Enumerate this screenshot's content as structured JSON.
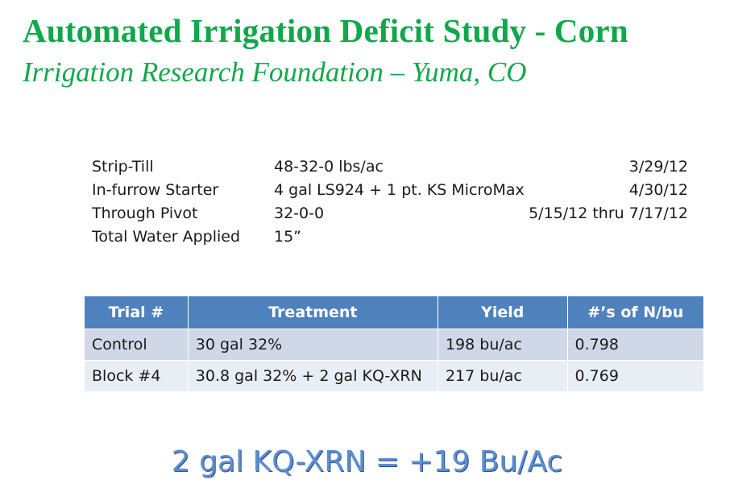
{
  "slide": {
    "title": "Automated Irrigation Deficit Study - Corn",
    "subtitle": "Irrigation Research Foundation – Yuma, CO"
  },
  "applications": [
    {
      "label": "Strip-Till",
      "value": "48-32-0 lbs/ac",
      "date": "3/29/12"
    },
    {
      "label": "In-furrow Starter",
      "value": "4 gal LS924 + 1 pt. KS MicroMax",
      "date": "4/30/12"
    },
    {
      "label": "Through Pivot",
      "value": "32-0-0",
      "date": "5/15/12 thru 7/17/12"
    },
    {
      "label": "Total Water Applied",
      "value": "15”",
      "date": ""
    }
  ],
  "results_table": {
    "headers": [
      "Trial #",
      "Treatment",
      "Yield",
      "#’s of N/bu"
    ],
    "rows": [
      [
        "Control",
        "30 gal 32%",
        "198 bu/ac",
        "0.798"
      ],
      [
        "Block #4",
        "30.8 gal 32% + 2 gal KQ-XRN",
        "217 bu/ac",
        "0.769"
      ]
    ]
  },
  "summary": "2 gal KQ-XRN = +19 Bu/Ac",
  "colors": {
    "title": "#0fa84a",
    "header_fill": "#4f81bd",
    "row_odd": "#d0d8e8",
    "row_even": "#e9edf4",
    "summary_text": "#5c8ed1"
  }
}
